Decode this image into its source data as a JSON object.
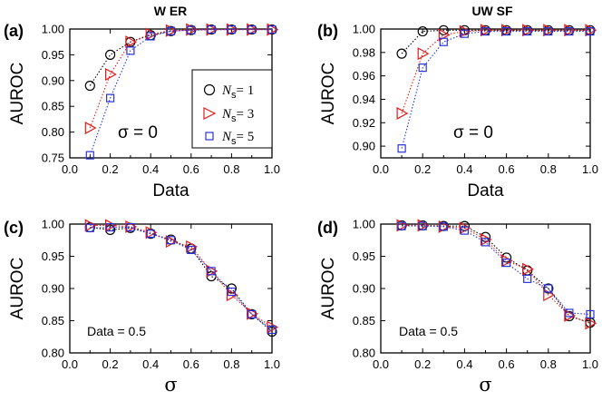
{
  "figure": {
    "legend": {
      "entries": [
        {
          "symbol_var": "N",
          "symbol_sub": "s",
          "suffix": "= 1",
          "series": "Ns=1"
        },
        {
          "symbol_var": "N",
          "symbol_sub": "s",
          "suffix": "= 3",
          "series": "Ns=3"
        },
        {
          "symbol_var": "N",
          "symbol_sub": "s",
          "suffix": "= 5",
          "series": "Ns=5"
        }
      ]
    }
  },
  "colors": {
    "Ns=1": "#000000",
    "Ns=3": "#e31a1c",
    "Ns=5": "#2b33d6"
  },
  "chart_data": [
    {
      "type": "scatter",
      "panel_label": "(a)",
      "title": "W ER",
      "xlabel": "Data",
      "ylabel": "AUROC",
      "annotation": "σ = 0",
      "xlim": [
        0.0,
        1.0
      ],
      "ylim": [
        0.75,
        1.0
      ],
      "xticks": [
        "0.0",
        "0.2",
        "0.4",
        "0.6",
        "0.8",
        "1.0"
      ],
      "yticks": [
        "0.75",
        "0.80",
        "0.85",
        "0.90",
        "0.95",
        "1.00"
      ],
      "x": [
        0.1,
        0.2,
        0.3,
        0.4,
        0.5,
        0.6,
        0.7,
        0.8,
        0.9,
        1.0
      ],
      "series": [
        {
          "name": "Ns=1",
          "marker": "circle",
          "values": [
            0.89,
            0.95,
            0.975,
            0.988,
            0.996,
            0.998,
            0.999,
            0.999,
            0.999,
            0.999
          ]
        },
        {
          "name": "Ns=3",
          "marker": "triangle-right",
          "values": [
            0.808,
            0.912,
            0.975,
            0.99,
            0.997,
            0.999,
            0.999,
            0.999,
            0.999,
            0.999
          ]
        },
        {
          "name": "Ns=5",
          "marker": "square",
          "values": [
            0.755,
            0.866,
            0.958,
            0.986,
            0.996,
            0.998,
            0.999,
            0.999,
            0.999,
            0.999
          ]
        }
      ]
    },
    {
      "type": "scatter",
      "panel_label": "(b)",
      "title": "UW SF",
      "xlabel": "Data",
      "ylabel": "AUROC",
      "annotation": "σ = 0",
      "xlim": [
        0.0,
        1.0
      ],
      "ylim": [
        0.89,
        1.0
      ],
      "xticks": [
        "0.0",
        "0.2",
        "0.4",
        "0.6",
        "0.8",
        "1.0"
      ],
      "yticks": [
        "0.90",
        "0.92",
        "0.94",
        "0.96",
        "0.98",
        "1.00"
      ],
      "x": [
        0.1,
        0.2,
        0.3,
        0.4,
        0.5,
        0.6,
        0.7,
        0.8,
        0.9,
        1.0
      ],
      "series": [
        {
          "name": "Ns=1",
          "marker": "circle",
          "values": [
            0.979,
            0.998,
            0.999,
            0.999,
            0.999,
            0.999,
            0.999,
            0.999,
            0.999,
            0.999
          ]
        },
        {
          "name": "Ns=3",
          "marker": "triangle-right",
          "values": [
            0.928,
            0.979,
            0.995,
            0.998,
            0.999,
            0.999,
            0.999,
            0.999,
            0.999,
            0.999
          ]
        },
        {
          "name": "Ns=5",
          "marker": "square",
          "values": [
            0.898,
            0.967,
            0.989,
            0.996,
            0.998,
            0.998,
            0.998,
            0.998,
            0.998,
            0.998
          ]
        }
      ]
    },
    {
      "type": "scatter",
      "panel_label": "(c)",
      "title": "",
      "xlabel": "σ",
      "ylabel": "AUROC",
      "annotation": "Data = 0.5",
      "xlim": [
        0.0,
        1.0
      ],
      "ylim": [
        0.8,
        1.0
      ],
      "xticks": [
        "0.0",
        "0.2",
        "0.4",
        "0.6",
        "0.8",
        "1.0"
      ],
      "yticks": [
        "0.80",
        "0.85",
        "0.90",
        "0.95",
        "1.00"
      ],
      "x": [
        0.1,
        0.2,
        0.3,
        0.4,
        0.5,
        0.6,
        0.7,
        0.8,
        0.9,
        1.0
      ],
      "series": [
        {
          "name": "Ns=1",
          "marker": "circle",
          "values": [
            0.995,
            0.991,
            0.994,
            0.985,
            0.976,
            0.962,
            0.919,
            0.9,
            0.86,
            0.833
          ]
        },
        {
          "name": "Ns=3",
          "marker": "triangle-right",
          "values": [
            0.998,
            0.998,
            0.996,
            0.987,
            0.973,
            0.965,
            0.927,
            0.89,
            0.861,
            0.84
          ]
        },
        {
          "name": "Ns=5",
          "marker": "square",
          "values": [
            0.994,
            0.995,
            0.995,
            0.985,
            0.975,
            0.96,
            0.927,
            0.895,
            0.86,
            0.836
          ]
        }
      ]
    },
    {
      "type": "scatter",
      "panel_label": "(d)",
      "title": "",
      "xlabel": "σ",
      "ylabel": "AUROC",
      "annotation": "Data = 0.5",
      "xlim": [
        0.0,
        1.0
      ],
      "ylim": [
        0.8,
        1.0
      ],
      "xticks": [
        "0.0",
        "0.2",
        "0.4",
        "0.6",
        "0.8",
        "1.0"
      ],
      "yticks": [
        "0.80",
        "0.85",
        "0.90",
        "0.95",
        "1.00"
      ],
      "x": [
        0.1,
        0.2,
        0.3,
        0.4,
        0.5,
        0.6,
        0.7,
        0.8,
        0.9,
        1.0
      ],
      "series": [
        {
          "name": "Ns=1",
          "marker": "circle",
          "values": [
            0.998,
            0.998,
            0.997,
            0.997,
            0.98,
            0.948,
            0.928,
            0.9,
            0.857,
            0.847
          ]
        },
        {
          "name": "Ns=3",
          "marker": "triangle-right",
          "values": [
            0.998,
            0.998,
            0.996,
            0.994,
            0.976,
            0.943,
            0.93,
            0.89,
            0.858,
            0.846
          ]
        },
        {
          "name": "Ns=5",
          "marker": "square",
          "values": [
            0.997,
            0.997,
            0.996,
            0.99,
            0.972,
            0.94,
            0.915,
            0.9,
            0.862,
            0.86
          ]
        }
      ]
    }
  ]
}
